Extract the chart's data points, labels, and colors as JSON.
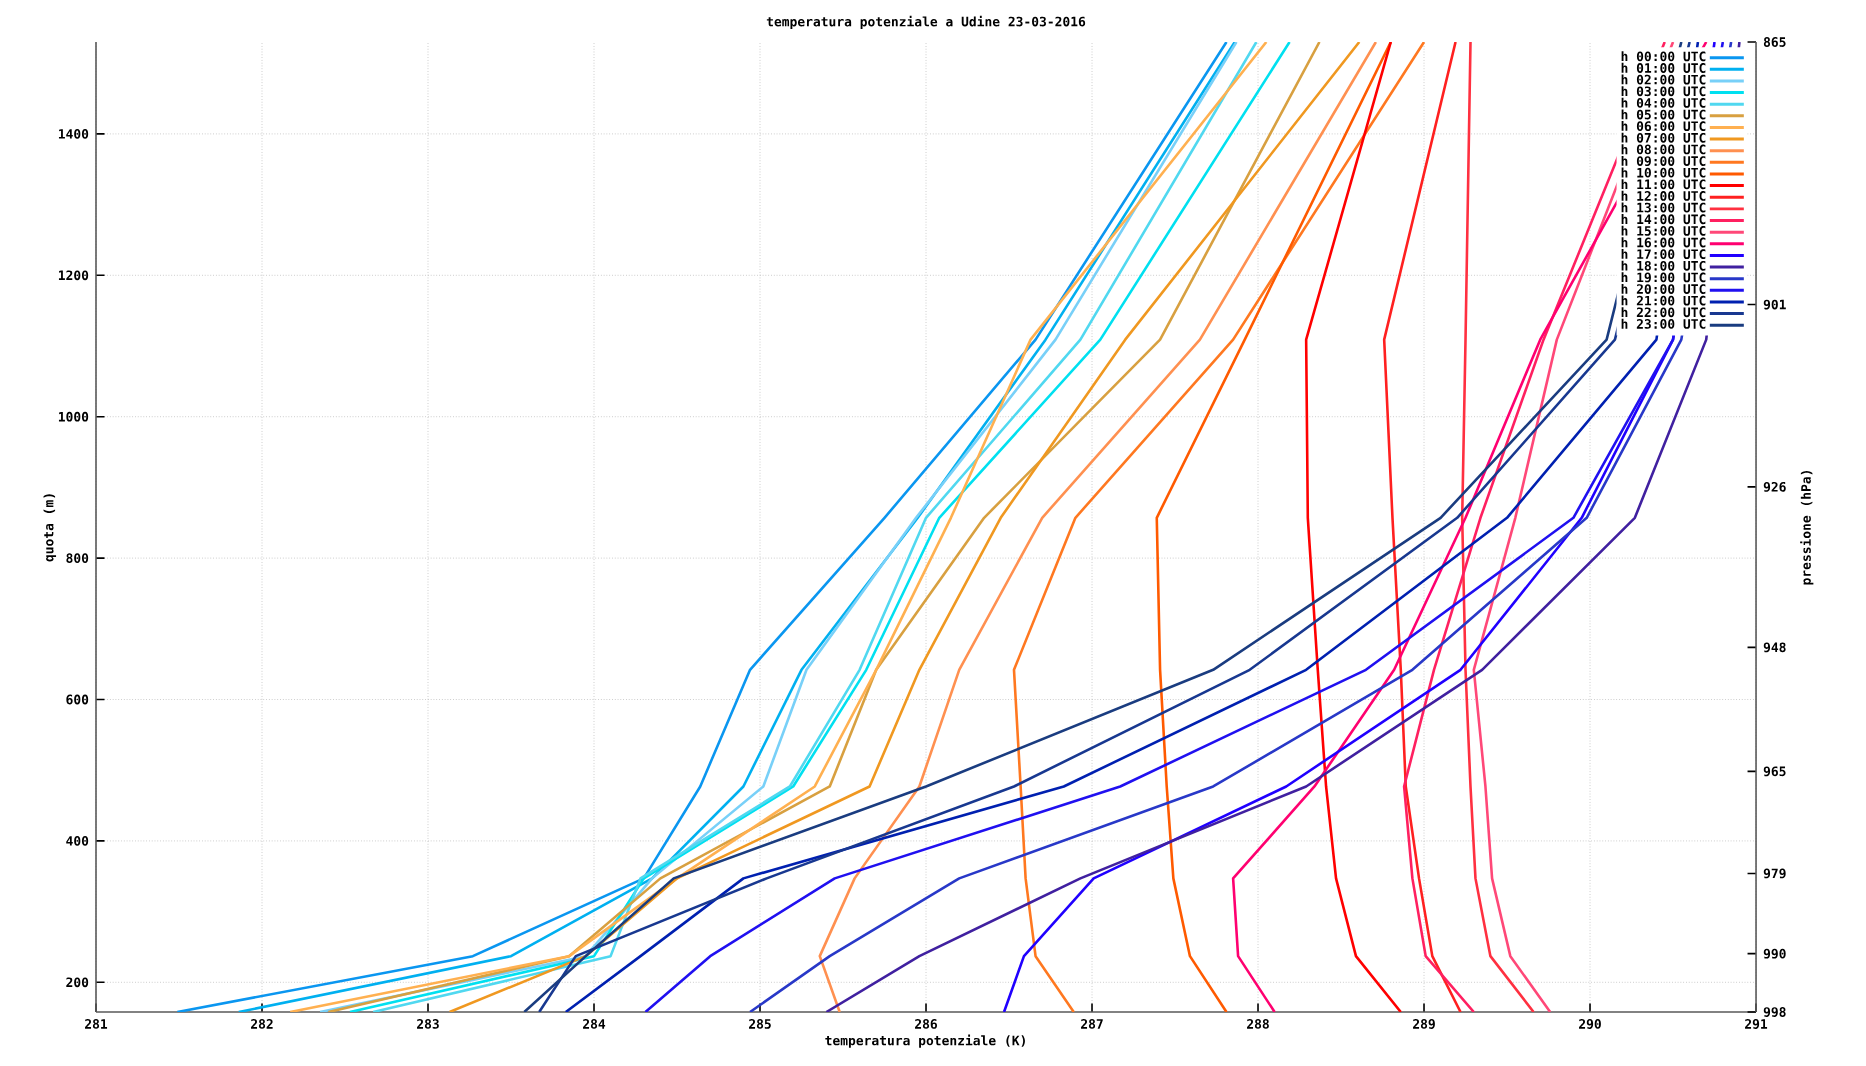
{
  "chart_data": {
    "type": "line",
    "title": "temperatura potenziale a Udine 23-03-2016",
    "xlabel": "temperatura potenziale (K)",
    "ylabel": "quota (m)",
    "y2label": "pressione (hPa)",
    "xlim": [
      281,
      291
    ],
    "xticks": [
      281,
      282,
      283,
      284,
      285,
      286,
      287,
      288,
      289,
      290,
      291
    ],
    "ylim": [
      158,
      1530
    ],
    "yticks": [
      200,
      400,
      600,
      800,
      1000,
      1200,
      1400
    ],
    "y2lim": [
      998,
      865
    ],
    "y2ticks": [
      865,
      901,
      926,
      948,
      965,
      979,
      990,
      998
    ],
    "grid": true,
    "legend": "top right",
    "series": [
      {
        "name": "h 00:00 UTC",
        "color": "#0a96f0",
        "x": [
          281.49,
          283.27,
          284.3,
          284.64,
          284.94,
          285.75,
          286.66,
          287.81
        ],
        "values": [
          158,
          237,
          347,
          477,
          642,
          857,
          1109,
          1530
        ]
      },
      {
        "name": "h 01:00 UTC",
        "color": "#00b0f0",
        "x": [
          281.86,
          283.5,
          284.35,
          284.9,
          285.25,
          285.95,
          286.72,
          287.86
        ],
        "values": [
          158,
          237,
          347,
          477,
          642,
          857,
          1109,
          1530
        ]
      },
      {
        "name": "h 02:00 UTC",
        "color": "#78d0f8",
        "x": [
          282.35,
          283.95,
          284.35,
          285.02,
          285.28,
          285.94,
          286.78,
          287.87
        ],
        "values": [
          158,
          237,
          347,
          477,
          642,
          857,
          1109,
          1530
        ]
      },
      {
        "name": "h 03:00 UTC",
        "color": "#00e0f0",
        "x": [
          282.53,
          284.0,
          284.3,
          285.2,
          285.64,
          286.08,
          287.05,
          288.19
        ],
        "values": [
          158,
          237,
          347,
          477,
          642,
          857,
          1109,
          1530
        ]
      },
      {
        "name": "h 04:00 UTC",
        "color": "#50d8f0",
        "x": [
          282.67,
          284.1,
          284.28,
          285.18,
          285.6,
          286.0,
          286.93,
          287.99
        ],
        "values": [
          158,
          237,
          347,
          477,
          642,
          857,
          1109,
          1530
        ]
      },
      {
        "name": "h 05:00 UTC",
        "color": "#d8a040",
        "x": [
          282.4,
          283.85,
          284.4,
          285.42,
          285.7,
          286.35,
          287.41,
          288.37
        ],
        "values": [
          158,
          237,
          347,
          477,
          642,
          857,
          1109,
          1530
        ]
      },
      {
        "name": "h 06:00 UTC",
        "color": "#ffb050",
        "x": [
          282.17,
          283.85,
          284.5,
          285.33,
          285.7,
          286.15,
          286.63,
          288.05
        ],
        "values": [
          158,
          237,
          347,
          477,
          642,
          857,
          1109,
          1530
        ]
      },
      {
        "name": "h 07:00 UTC",
        "color": "#f09820",
        "x": [
          283.13,
          283.95,
          284.5,
          285.66,
          285.96,
          286.45,
          287.2,
          288.61
        ],
        "values": [
          158,
          237,
          347,
          477,
          642,
          857,
          1109,
          1530
        ]
      },
      {
        "name": "h 08:00 UTC",
        "color": "#ff9050",
        "x": [
          285.48,
          285.36,
          285.57,
          285.96,
          286.2,
          286.7,
          287.65,
          288.71
        ],
        "values": [
          158,
          237,
          347,
          477,
          642,
          857,
          1109,
          1530
        ]
      },
      {
        "name": "h 09:00 UTC",
        "color": "#ff7820",
        "x": [
          286.89,
          286.66,
          286.6,
          286.57,
          286.53,
          286.9,
          287.85,
          289.0
        ],
        "values": [
          158,
          237,
          347,
          477,
          642,
          857,
          1109,
          1530
        ]
      },
      {
        "name": "h 10:00 UTC",
        "color": "#ff5a00",
        "x": [
          287.81,
          287.59,
          287.49,
          287.45,
          287.41,
          287.39,
          287.92,
          288.8
        ],
        "values": [
          158,
          237,
          347,
          477,
          642,
          857,
          1109,
          1530
        ]
      },
      {
        "name": "h 11:00 UTC",
        "color": "#ff0000",
        "x": [
          288.86,
          288.59,
          288.47,
          288.41,
          288.36,
          288.3,
          288.29,
          288.8
        ],
        "values": [
          158,
          237,
          347,
          477,
          642,
          857,
          1109,
          1530
        ]
      },
      {
        "name": "h 12:00 UTC",
        "color": "#ff2020",
        "x": [
          289.22,
          289.05,
          288.97,
          288.89,
          288.86,
          288.81,
          288.76,
          289.19
        ],
        "values": [
          158,
          237,
          347,
          477,
          642,
          857,
          1109,
          1530
        ]
      },
      {
        "name": "h 13:00 UTC",
        "color": "#ff3040",
        "x": [
          289.66,
          289.4,
          289.31,
          289.28,
          289.25,
          289.23,
          289.25,
          289.28
        ],
        "values": [
          158,
          237,
          347,
          477,
          642,
          857,
          1109,
          1530
        ]
      },
      {
        "name": "h 14:00 UTC",
        "color": "#ff2060",
        "x": [
          289.3,
          289.01,
          288.93,
          288.88,
          289.06,
          289.34,
          289.72,
          290.45
        ],
        "values": [
          158,
          237,
          347,
          477,
          642,
          857,
          1109,
          1530
        ]
      },
      {
        "name": "h 15:00 UTC",
        "color": "#ff4878",
        "x": [
          289.76,
          289.52,
          289.41,
          289.37,
          289.3,
          289.55,
          289.8,
          290.5
        ],
        "values": [
          158,
          237,
          347,
          477,
          642,
          857,
          1109,
          1530
        ]
      },
      {
        "name": "h 16:00 UTC",
        "color": "#ff0070",
        "x": [
          288.1,
          287.88,
          287.85,
          288.34,
          288.82,
          289.25,
          289.7,
          290.7
        ],
        "values": [
          158,
          237,
          347,
          477,
          642,
          857,
          1109,
          1530
        ]
      },
      {
        "name": "h 17:00 UTC",
        "color": "#2000ff",
        "x": [
          286.47,
          286.59,
          287.01,
          288.17,
          289.22,
          289.95,
          290.5,
          290.75
        ],
        "values": [
          158,
          237,
          347,
          477,
          642,
          857,
          1109,
          1530
        ]
      },
      {
        "name": "h 18:00 UTC",
        "color": "#4020a0",
        "x": [
          285.4,
          285.96,
          286.93,
          288.29,
          289.35,
          290.27,
          290.7,
          290.9
        ],
        "values": [
          158,
          237,
          347,
          477,
          642,
          857,
          1109,
          1530
        ]
      },
      {
        "name": "h 19:00 UTC",
        "color": "#2838c8",
        "x": [
          284.94,
          285.42,
          286.2,
          287.73,
          288.93,
          289.98,
          290.55,
          290.85
        ],
        "values": [
          158,
          237,
          347,
          477,
          642,
          857,
          1109,
          1530
        ]
      },
      {
        "name": "h 20:00 UTC",
        "color": "#2010f0",
        "x": [
          284.31,
          284.7,
          285.45,
          287.17,
          288.65,
          289.9,
          290.5,
          290.8
        ],
        "values": [
          158,
          237,
          347,
          477,
          642,
          857,
          1109,
          1530
        ]
      },
      {
        "name": "h 21:00 UTC",
        "color": "#0020b0",
        "x": [
          283.83,
          284.28,
          284.9,
          286.83,
          288.29,
          289.5,
          290.4,
          290.65
        ],
        "values": [
          158,
          237,
          347,
          477,
          642,
          857,
          1109,
          1530
        ]
      },
      {
        "name": "h 22:00 UTC",
        "color": "#183890",
        "x": [
          283.67,
          283.89,
          285.04,
          286.53,
          287.95,
          289.2,
          290.15,
          290.6
        ],
        "values": [
          158,
          237,
          347,
          477,
          642,
          857,
          1109,
          1530
        ]
      },
      {
        "name": "h 23:00 UTC",
        "color": "#1a3c80",
        "x": [
          283.58,
          283.95,
          284.48,
          286.0,
          287.73,
          289.1,
          290.1,
          290.55
        ],
        "values": [
          158,
          237,
          347,
          477,
          642,
          857,
          1109,
          1530
        ]
      }
    ]
  }
}
